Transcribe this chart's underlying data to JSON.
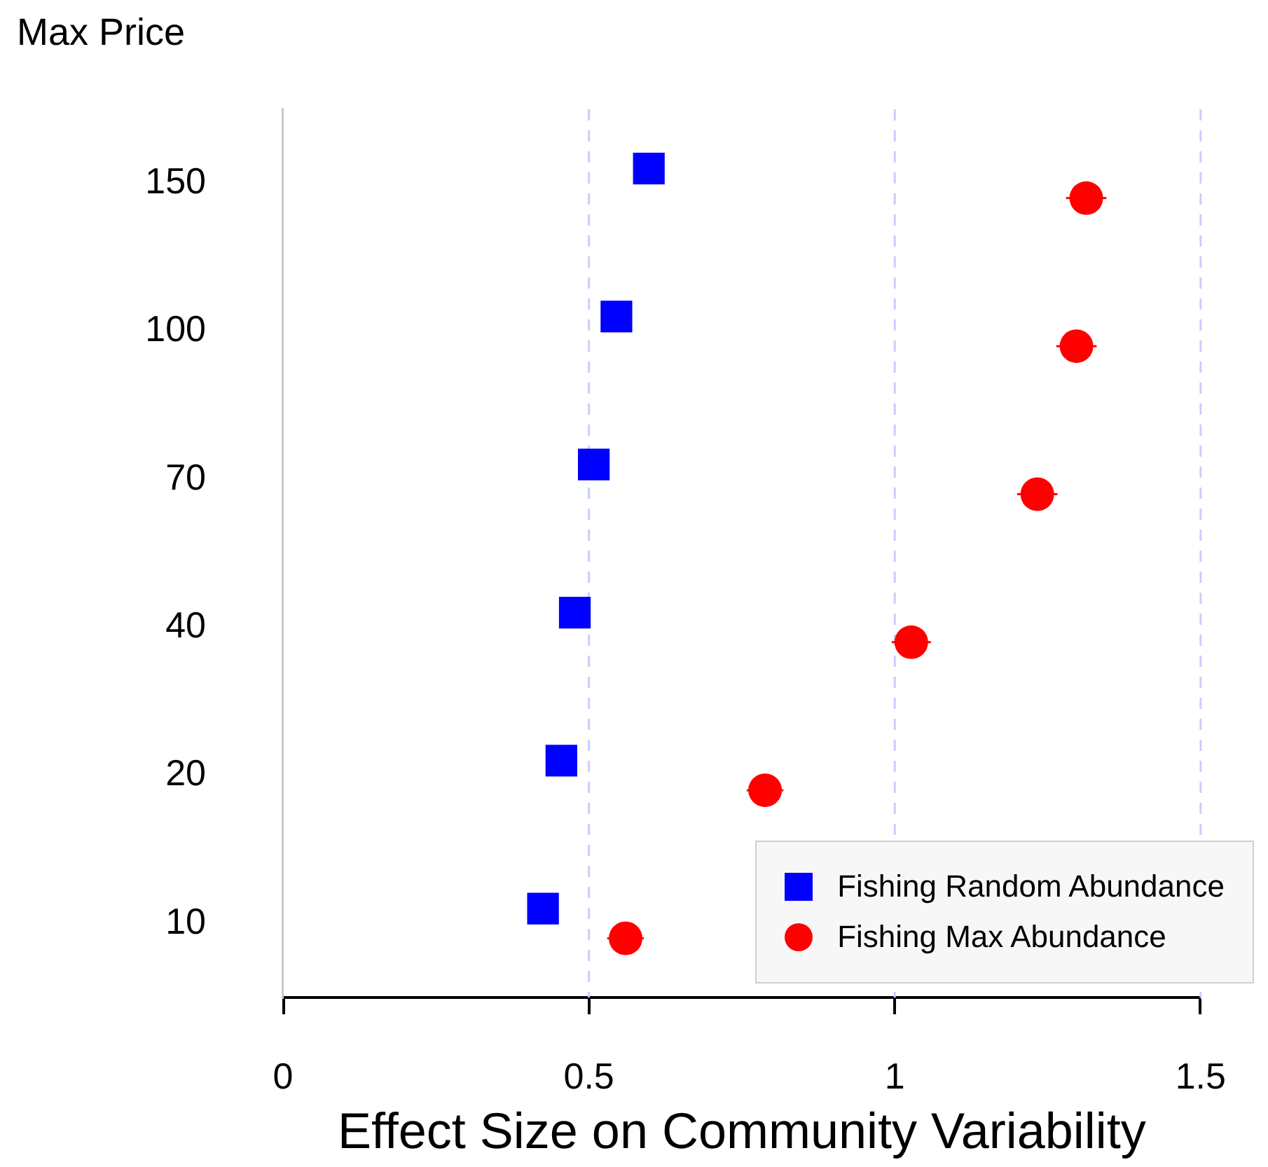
{
  "chart_data": {
    "type": "scatter",
    "orientation": "horizontal",
    "ylabel": "Max Price",
    "xlabel": "Effect Size on Community Variability",
    "categories": [
      "150",
      "100",
      "70",
      "40",
      "20",
      "10"
    ],
    "xlim": [
      0,
      1.5
    ],
    "xticks": [
      0,
      0.5,
      1,
      1.5
    ],
    "grid": "x",
    "legend": "bottom right",
    "series": [
      {
        "name": "Fishing Random Abundance",
        "color": "#0000ff",
        "marker": "square",
        "values": [
          0.598,
          0.545,
          0.508,
          0.477,
          0.455,
          0.425
        ],
        "errors": [
          0.01,
          0.01,
          0.01,
          0.01,
          0.01,
          0.01
        ]
      },
      {
        "name": "Fishing Max Abundance",
        "color": "#ff0000",
        "marker": "circle",
        "values": [
          1.313,
          1.297,
          1.233,
          1.027,
          0.788,
          0.56
        ],
        "errors": [
          0.033,
          0.033,
          0.033,
          0.032,
          0.03,
          0.03
        ]
      }
    ]
  }
}
